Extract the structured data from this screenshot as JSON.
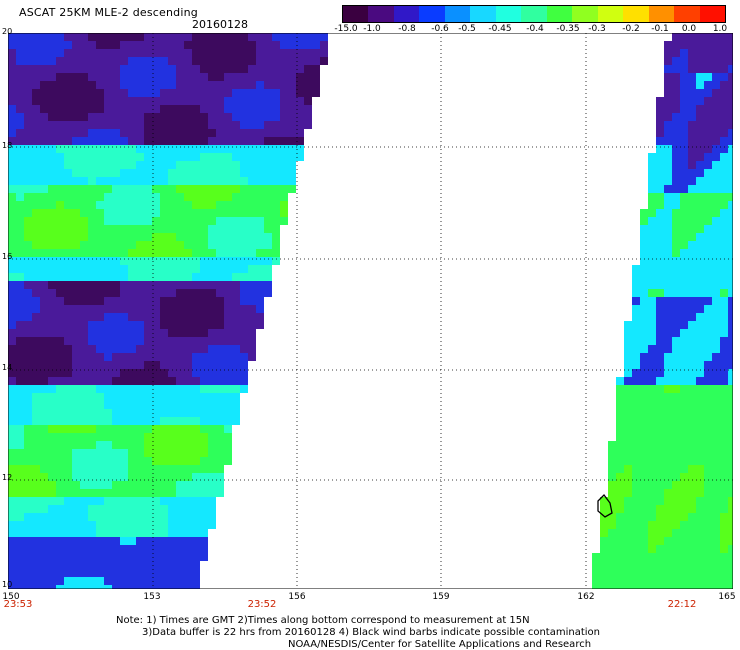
{
  "header": {
    "title": "ASCAT 25KM MLE-2 descending",
    "date": "20160128"
  },
  "colorbar": {
    "tick_labels": [
      "-15.0",
      "-1.0",
      "-0.8",
      "-0.6",
      "-0.5",
      "-0.45",
      "-0.4",
      "-0.35",
      "-0.3",
      "-0.2",
      "-0.1",
      "0.0",
      "1.0"
    ],
    "colors": [
      "#3a0040",
      "#4a0a80",
      "#3018c8",
      "#0a3cff",
      "#0a90ff",
      "#18d8ff",
      "#20ffe0",
      "#30ffa0",
      "#40ff40",
      "#90ff20",
      "#d0ff10",
      "#ffe000",
      "#ff9000",
      "#ff4000",
      "#ff1000"
    ]
  },
  "map": {
    "lat_labels": [
      "20",
      "18",
      "16",
      "14",
      "12",
      "10"
    ],
    "lon_labels": [
      "150",
      "153",
      "156",
      "159",
      "162",
      "165"
    ],
    "time_labels": [
      "23:53",
      "23:52",
      "22:12"
    ],
    "land_colors": {
      "deep": "#3d0a5e",
      "purple": "#4a1a9a",
      "blue": "#2232e0",
      "cyan": "#14e8ff",
      "teal": "#28ffc8",
      "green": "#2eff5a",
      "lime": "#58ff1c"
    }
  },
  "footer": {
    "line1": "Note: 1) Times are GMT 2)Times along bottom correspond to measurement at 15N",
    "line2": "3)Data buffer is 22 hrs from 20160128 4) Black wind barbs indicate possible contamination",
    "line3": "NOAA/NESDIS/Center for Satellite Applications and Research"
  }
}
